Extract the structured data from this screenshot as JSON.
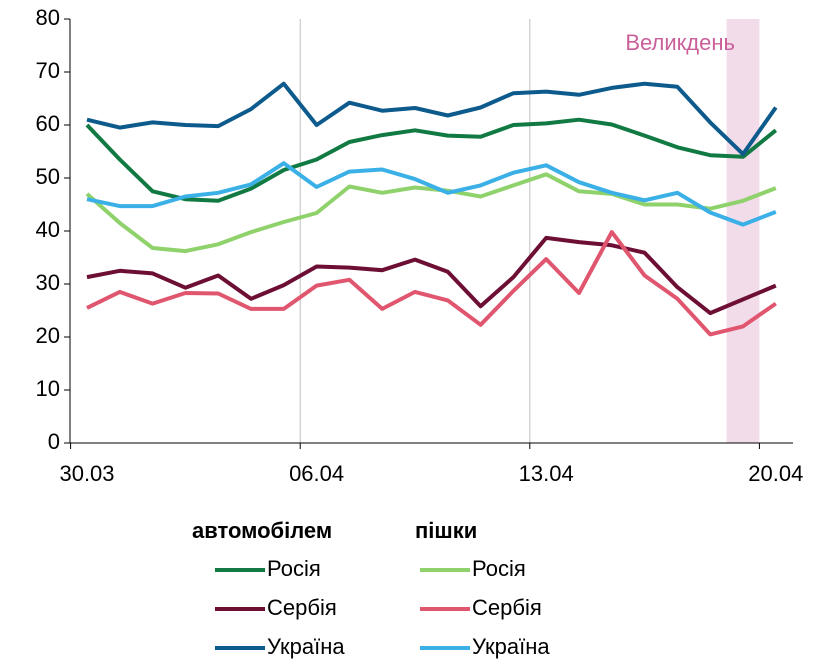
{
  "chart_data": {
    "type": "line",
    "categories": [
      "30.03",
      null,
      null,
      null,
      null,
      null,
      null,
      "06.04",
      null,
      null,
      null,
      null,
      null,
      null,
      "13.04",
      null,
      null,
      null,
      null,
      null,
      null,
      "20.04"
    ],
    "ylim": [
      0,
      80
    ],
    "yticks": [
      0,
      10,
      20,
      30,
      40,
      50,
      60,
      70,
      80
    ],
    "highlight": {
      "label": "Великдень",
      "index": 20,
      "color": "#f2dcea",
      "label_color": "#c9609a"
    },
    "groups": [
      {
        "name": "автомобілем",
        "series": [
          {
            "name": "Росія",
            "color": "#117a43",
            "values": [
              60,
              53.5,
              47.5,
              46,
              45.7,
              48,
              51.5,
              53.5,
              56.8,
              58.1,
              59,
              58,
              57.8,
              60,
              60.3,
              61,
              60.1,
              58,
              55.8,
              54.3,
              54,
              59
            ]
          },
          {
            "name": "Сербія",
            "color": "#6d0f35",
            "values": [
              31.3,
              32.5,
              32,
              29.3,
              31.6,
              27.2,
              29.8,
              33.3,
              33.1,
              32.6,
              34.6,
              32.3,
              25.8,
              31.3,
              38.7,
              37.9,
              37.3,
              35.9,
              29.4,
              24.5,
              27.1,
              29.7
            ]
          },
          {
            "name": "Україна",
            "color": "#0d5a8c",
            "values": [
              61,
              59.5,
              60.5,
              60,
              59.8,
              63,
              67.8,
              60,
              64.2,
              62.7,
              63.2,
              61.8,
              63.3,
              66,
              66.3,
              65.7,
              67,
              67.8,
              67.2,
              60.5,
              54.5,
              63.3
            ]
          }
        ]
      },
      {
        "name": "пішки",
        "series": [
          {
            "name": "Росія",
            "color": "#8fd26b",
            "values": [
              47,
              41.5,
              36.8,
              36.2,
              37.5,
              39.8,
              41.7,
              43.4,
              48.4,
              47.2,
              48.2,
              47.6,
              46.5,
              48.6,
              50.7,
              47.5,
              47,
              45,
              45,
              44.2,
              45.7,
              48.1
            ]
          },
          {
            "name": "Сербія",
            "color": "#e0566f",
            "values": [
              25.5,
              28.5,
              26.3,
              28.3,
              28.2,
              25.3,
              25.3,
              29.7,
              30.8,
              25.3,
              28.5,
              26.9,
              22.3,
              28.7,
              34.7,
              28.3,
              39.8,
              31.6,
              27.2,
              20.5,
              22,
              26.3
            ]
          },
          {
            "name": "Україна",
            "color": "#3ab0e6",
            "values": [
              46,
              44.7,
              44.7,
              46.5,
              47.2,
              48.8,
              52.8,
              48.3,
              51.2,
              51.6,
              49.8,
              47.2,
              48.6,
              51,
              52.4,
              49.2,
              47.2,
              45.8,
              47.2,
              43.5,
              41.2,
              43.6
            ]
          }
        ]
      }
    ]
  }
}
